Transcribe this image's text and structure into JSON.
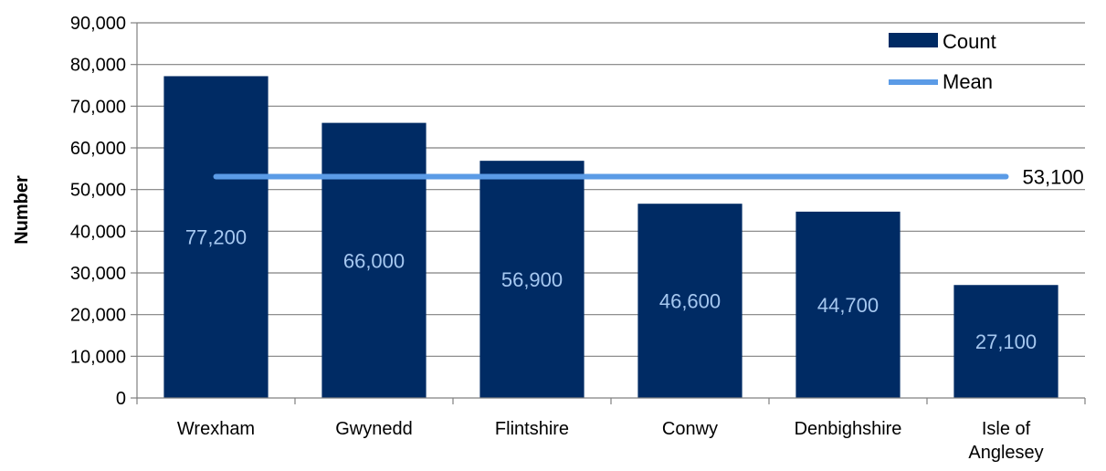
{
  "chart_data": {
    "type": "bar",
    "categories": [
      "Wrexham",
      "Gwynedd",
      "Flintshire",
      "Conwy",
      "Denbighshire",
      "Isle of Anglesey"
    ],
    "category_lines": [
      [
        "Wrexham"
      ],
      [
        "Gwynedd"
      ],
      [
        "Flintshire"
      ],
      [
        "Conwy"
      ],
      [
        "Denbighshire"
      ],
      [
        "Isle of",
        "Anglesey"
      ]
    ],
    "series": [
      {
        "name": "Count",
        "type": "bar",
        "values": [
          77200,
          66000,
          56900,
          46600,
          44700,
          27100
        ],
        "labels": [
          "77,200",
          "66,000",
          "56,900",
          "46,600",
          "44,700",
          "27,100"
        ]
      },
      {
        "name": "Mean",
        "type": "line",
        "value": 53100,
        "label": "53,100"
      }
    ],
    "xlabel": "",
    "ylabel": "Number",
    "ylim": [
      0,
      90000
    ],
    "yticks": [
      0,
      10000,
      20000,
      30000,
      40000,
      50000,
      60000,
      70000,
      80000,
      90000
    ],
    "ytick_labels": [
      "0",
      "10,000",
      "20,000",
      "30,000",
      "40,000",
      "50,000",
      "60,000",
      "70,000",
      "80,000",
      "90,000"
    ],
    "grid": true,
    "legend_position": "top-right",
    "colors": {
      "bar": "#002B64",
      "mean_line": "#5B9BE6",
      "bar_label": "#A6C8F0",
      "grid": "#808080",
      "axis": "#808080"
    }
  }
}
